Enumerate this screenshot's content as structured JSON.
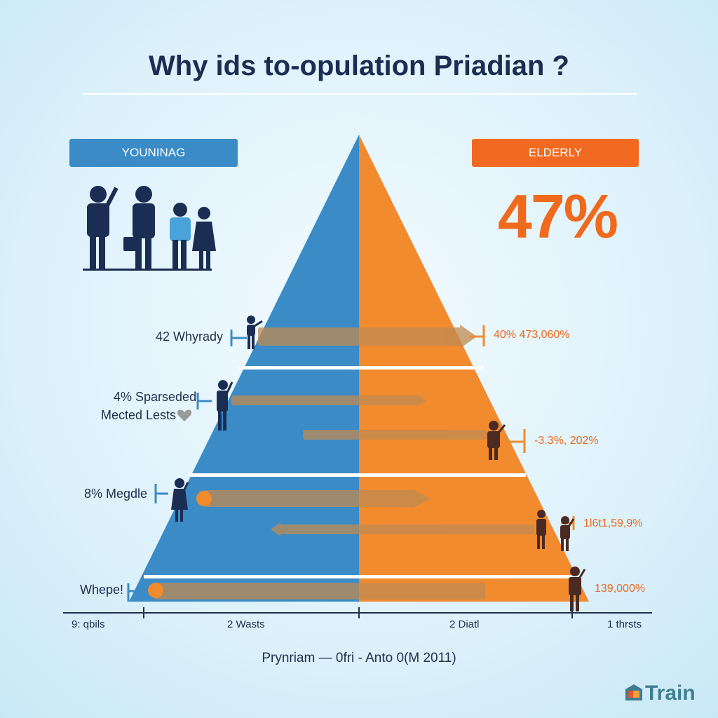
{
  "title": "Why ids to-opulation Priadian ?",
  "badges": {
    "young": "YOUNINAG",
    "old": "ELDERLY"
  },
  "big_percent": "47%",
  "left_labels": [
    "42 Whyrady",
    "4% Sparseded",
    "Mected Lests",
    "8% Megdle",
    "Whepe!"
  ],
  "right_labels": [
    "40% 473,060%",
    "-3.3%, 202%",
    "1l6t1,59,9%",
    "139,000%"
  ],
  "axis_labels": [
    "9: qbils",
    "2 Wasts",
    "2 Diatl",
    "1 thrsts"
  ],
  "caption": "Prynriam — 0fri - Anto 0(M 2011)",
  "brand": "Train",
  "colors": {
    "young": "#3a8bc6",
    "elderly": "#f28a2e",
    "accent": "#f06a1e",
    "navy": "#1b2d52"
  }
}
